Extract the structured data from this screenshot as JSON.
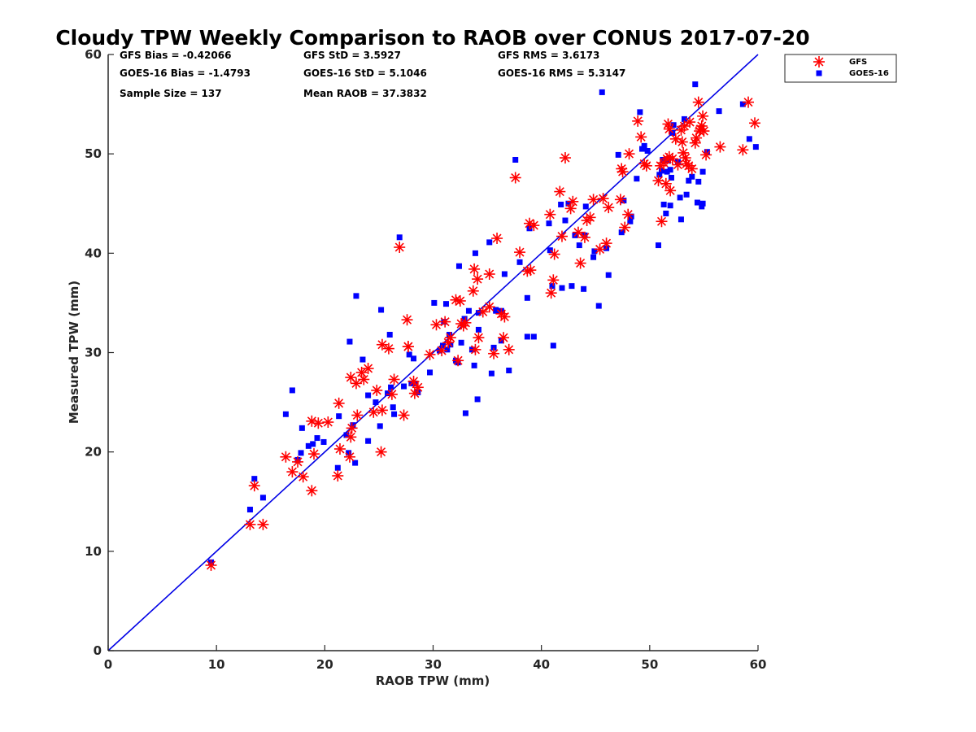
{
  "chart_data": {
    "type": "scatter",
    "title": "Cloudy TPW Weekly Comparison to RAOB over CONUS 2017-07-20",
    "xlabel": "RAOB TPW (mm)",
    "ylabel": "Measured TPW (mm)",
    "xlim": [
      0,
      60
    ],
    "ylim": [
      0,
      60
    ],
    "xticks": [
      "0",
      "10",
      "20",
      "30",
      "40",
      "50",
      "60"
    ],
    "yticks": [
      "0",
      "10",
      "20",
      "30",
      "40",
      "50",
      "60"
    ],
    "grid": false,
    "legend_position": "top-right, outside",
    "reference_line": {
      "name": "1:1",
      "x": [
        0,
        60
      ],
      "y": [
        0,
        60
      ],
      "color": "#0000e6"
    },
    "stats": {
      "gfs_bias": "GFS Bias = -0.42066",
      "gfs_std": "GFS StD = 3.5927",
      "gfs_rms": "GFS RMS = 3.6173",
      "goes_bias": "GOES-16 Bias = -1.4793",
      "goes_std": "GOES-16 StD = 5.1046",
      "goes_rms": "GOES-16 RMS = 5.3147",
      "sample_size": "Sample Size = 137",
      "mean_raob": "Mean RAOB = 37.3832"
    },
    "series": [
      {
        "name": "GFS",
        "marker": "asterisk",
        "color": "#ff0000",
        "points": [
          [
            9.5,
            8.6
          ],
          [
            13.1,
            12.7
          ],
          [
            14.3,
            12.7
          ],
          [
            13.5,
            16.6
          ],
          [
            16.4,
            19.5
          ],
          [
            17.0,
            18.0
          ],
          [
            17.5,
            19.0
          ],
          [
            18.0,
            17.5
          ],
          [
            18.8,
            23.1
          ],
          [
            19.4,
            22.9
          ],
          [
            19.0,
            19.8
          ],
          [
            18.8,
            16.1
          ],
          [
            21.2,
            17.6
          ],
          [
            21.4,
            20.3
          ],
          [
            21.3,
            24.9
          ],
          [
            22.3,
            19.5
          ],
          [
            22.4,
            21.5
          ],
          [
            22.5,
            22.4
          ],
          [
            22.4,
            27.5
          ],
          [
            22.9,
            26.9
          ],
          [
            23.0,
            23.7
          ],
          [
            23.6,
            27.3
          ],
          [
            24.0,
            28.4
          ],
          [
            24.5,
            24.0
          ],
          [
            24.8,
            26.2
          ],
          [
            25.2,
            20.0
          ],
          [
            25.3,
            24.2
          ],
          [
            25.3,
            30.8
          ],
          [
            25.9,
            30.4
          ],
          [
            26.2,
            25.8
          ],
          [
            26.4,
            27.3
          ],
          [
            27.3,
            23.7
          ],
          [
            27.6,
            33.3
          ],
          [
            27.7,
            30.6
          ],
          [
            28.2,
            27.1
          ],
          [
            28.3,
            25.9
          ],
          [
            28.6,
            26.5
          ],
          [
            29.7,
            29.8
          ],
          [
            30.3,
            32.8
          ],
          [
            30.8,
            30.2
          ],
          [
            31.4,
            31.0
          ],
          [
            31.1,
            33.1
          ],
          [
            32.1,
            35.3
          ],
          [
            32.5,
            35.2
          ],
          [
            32.6,
            32.9
          ],
          [
            32.3,
            29.2
          ],
          [
            32.8,
            32.7
          ],
          [
            33.7,
            36.2
          ],
          [
            33.8,
            38.4
          ],
          [
            33.9,
            30.3
          ],
          [
            34.1,
            37.4
          ],
          [
            34.2,
            31.5
          ],
          [
            34.6,
            34.1
          ],
          [
            35.2,
            37.9
          ],
          [
            35.2,
            34.6
          ],
          [
            35.6,
            29.9
          ],
          [
            35.9,
            41.5
          ],
          [
            36.3,
            33.9
          ],
          [
            36.5,
            31.5
          ],
          [
            36.6,
            33.6
          ],
          [
            37.0,
            30.3
          ],
          [
            37.6,
            47.6
          ],
          [
            38.0,
            40.1
          ],
          [
            38.7,
            38.2
          ],
          [
            38.9,
            43.0
          ],
          [
            39.3,
            42.8
          ],
          [
            40.9,
            36.0
          ],
          [
            40.8,
            43.9
          ],
          [
            41.1,
            37.3
          ],
          [
            41.2,
            39.9
          ],
          [
            41.7,
            46.2
          ],
          [
            41.9,
            41.7
          ],
          [
            42.2,
            49.6
          ],
          [
            42.7,
            44.5
          ],
          [
            42.9,
            45.2
          ],
          [
            43.4,
            42.1
          ],
          [
            43.6,
            39.0
          ],
          [
            44.0,
            41.6
          ],
          [
            44.2,
            43.3
          ],
          [
            44.5,
            43.6
          ],
          [
            44.8,
            45.4
          ],
          [
            45.4,
            40.4
          ],
          [
            45.7,
            45.5
          ],
          [
            46.0,
            41.0
          ],
          [
            46.2,
            44.6
          ],
          [
            47.3,
            45.4
          ],
          [
            47.4,
            48.5
          ],
          [
            47.5,
            48.2
          ],
          [
            47.7,
            42.6
          ],
          [
            48.0,
            43.9
          ],
          [
            48.1,
            50.0
          ],
          [
            48.9,
            53.3
          ],
          [
            49.2,
            51.7
          ],
          [
            49.5,
            49.0
          ],
          [
            49.7,
            48.8
          ],
          [
            50.8,
            47.3
          ],
          [
            51.0,
            48.8
          ],
          [
            51.1,
            43.2
          ],
          [
            51.3,
            49.1
          ],
          [
            51.5,
            47.0
          ],
          [
            51.6,
            49.5
          ],
          [
            51.8,
            49.7
          ],
          [
            51.8,
            52.5
          ],
          [
            51.7,
            53.0
          ],
          [
            51.9,
            46.3
          ],
          [
            52.1,
            49.5
          ],
          [
            52.4,
            51.5
          ],
          [
            52.6,
            48.9
          ],
          [
            52.9,
            52.4
          ],
          [
            53.0,
            51.2
          ],
          [
            53.1,
            50.1
          ],
          [
            53.2,
            52.8
          ],
          [
            53.3,
            49.6
          ],
          [
            53.4,
            49.0
          ],
          [
            53.6,
            48.8
          ],
          [
            53.7,
            53.2
          ],
          [
            53.9,
            48.5
          ],
          [
            54.2,
            51.1
          ],
          [
            54.3,
            51.6
          ],
          [
            54.5,
            55.2
          ],
          [
            54.6,
            52.3
          ],
          [
            54.7,
            52.5
          ],
          [
            54.8,
            52.8
          ],
          [
            54.9,
            53.8
          ],
          [
            55.0,
            52.3
          ],
          [
            55.2,
            49.9
          ],
          [
            56.5,
            50.7
          ],
          [
            58.6,
            50.4
          ],
          [
            59.1,
            55.2
          ],
          [
            59.7,
            53.1
          ],
          [
            26.9,
            40.6
          ],
          [
            33.0,
            33.0
          ],
          [
            20.3,
            23.0
          ],
          [
            23.4,
            28.0
          ],
          [
            27.7,
            30.6
          ],
          [
            31.6,
            31.5
          ],
          [
            39.0,
            38.3
          ]
        ]
      },
      {
        "name": "GOES-16",
        "marker": "square",
        "color": "#0000ff",
        "points": [
          [
            9.5,
            8.9
          ],
          [
            13.1,
            14.2
          ],
          [
            13.5,
            17.3
          ],
          [
            14.3,
            15.4
          ],
          [
            16.4,
            23.8
          ],
          [
            17.0,
            26.2
          ],
          [
            17.5,
            19.2
          ],
          [
            17.8,
            19.9
          ],
          [
            17.9,
            22.4
          ],
          [
            18.5,
            20.6
          ],
          [
            18.9,
            20.8
          ],
          [
            19.3,
            21.4
          ],
          [
            21.2,
            18.4
          ],
          [
            21.3,
            23.6
          ],
          [
            22.0,
            21.7
          ],
          [
            22.2,
            19.9
          ],
          [
            22.3,
            31.1
          ],
          [
            22.6,
            22.7
          ],
          [
            22.8,
            18.9
          ],
          [
            22.9,
            35.7
          ],
          [
            23.5,
            29.3
          ],
          [
            24.0,
            21.1
          ],
          [
            24.0,
            25.7
          ],
          [
            24.7,
            25.0
          ],
          [
            25.1,
            22.6
          ],
          [
            25.2,
            34.3
          ],
          [
            25.8,
            25.9
          ],
          [
            26.0,
            31.8
          ],
          [
            26.1,
            26.5
          ],
          [
            26.4,
            23.8
          ],
          [
            26.9,
            41.6
          ],
          [
            27.3,
            26.6
          ],
          [
            27.8,
            29.8
          ],
          [
            28.0,
            26.9
          ],
          [
            28.2,
            29.4
          ],
          [
            28.3,
            26.9
          ],
          [
            28.6,
            26.0
          ],
          [
            29.7,
            28.0
          ],
          [
            30.1,
            35.0
          ],
          [
            30.6,
            30.2
          ],
          [
            31.0,
            33.1
          ],
          [
            31.2,
            34.9
          ],
          [
            31.3,
            30.3
          ],
          [
            31.5,
            31.8
          ],
          [
            31.6,
            30.8
          ],
          [
            32.1,
            29.2
          ],
          [
            32.3,
            29.0
          ],
          [
            32.4,
            38.7
          ],
          [
            32.6,
            31.0
          ],
          [
            32.9,
            33.4
          ],
          [
            33.0,
            23.9
          ],
          [
            33.3,
            34.2
          ],
          [
            33.6,
            30.3
          ],
          [
            33.8,
            28.7
          ],
          [
            33.9,
            40.0
          ],
          [
            34.1,
            25.3
          ],
          [
            34.2,
            34.0
          ],
          [
            34.2,
            32.3
          ],
          [
            35.2,
            41.1
          ],
          [
            35.4,
            27.9
          ],
          [
            35.6,
            30.5
          ],
          [
            35.8,
            34.3
          ],
          [
            36.3,
            34.2
          ],
          [
            36.3,
            31.2
          ],
          [
            36.6,
            37.9
          ],
          [
            37.0,
            28.2
          ],
          [
            37.6,
            49.4
          ],
          [
            38.0,
            39.1
          ],
          [
            38.7,
            35.5
          ],
          [
            38.7,
            31.6
          ],
          [
            38.9,
            42.5
          ],
          [
            39.3,
            31.6
          ],
          [
            40.7,
            43.0
          ],
          [
            40.8,
            40.3
          ],
          [
            41.0,
            36.7
          ],
          [
            41.1,
            30.7
          ],
          [
            41.8,
            44.9
          ],
          [
            41.9,
            36.5
          ],
          [
            42.2,
            43.3
          ],
          [
            42.8,
            36.7
          ],
          [
            43.1,
            41.8
          ],
          [
            43.5,
            40.8
          ],
          [
            43.9,
            36.4
          ],
          [
            44.1,
            44.7
          ],
          [
            44.8,
            39.6
          ],
          [
            44.9,
            40.2
          ],
          [
            45.3,
            34.7
          ],
          [
            45.6,
            56.2
          ],
          [
            46.0,
            40.5
          ],
          [
            46.2,
            37.8
          ],
          [
            47.1,
            49.9
          ],
          [
            47.4,
            42.1
          ],
          [
            47.6,
            45.3
          ],
          [
            48.2,
            43.2
          ],
          [
            48.3,
            43.7
          ],
          [
            48.8,
            47.5
          ],
          [
            49.1,
            54.2
          ],
          [
            49.3,
            50.5
          ],
          [
            49.8,
            50.3
          ],
          [
            50.8,
            40.8
          ],
          [
            50.9,
            47.9
          ],
          [
            51.1,
            48.3
          ],
          [
            51.2,
            49.4
          ],
          [
            51.3,
            44.9
          ],
          [
            51.5,
            44.0
          ],
          [
            51.6,
            48.2
          ],
          [
            51.9,
            44.8
          ],
          [
            51.9,
            48.4
          ],
          [
            52.0,
            47.6
          ],
          [
            52.2,
            52.9
          ],
          [
            52.6,
            49.2
          ],
          [
            52.8,
            45.6
          ],
          [
            52.9,
            43.4
          ],
          [
            53.2,
            53.5
          ],
          [
            53.4,
            45.9
          ],
          [
            53.6,
            47.3
          ],
          [
            53.9,
            47.7
          ],
          [
            54.2,
            57.0
          ],
          [
            54.4,
            45.1
          ],
          [
            54.5,
            47.2
          ],
          [
            54.8,
            44.7
          ],
          [
            54.9,
            45.0
          ],
          [
            54.9,
            48.2
          ],
          [
            55.3,
            50.2
          ],
          [
            56.4,
            54.3
          ],
          [
            58.6,
            55.0
          ],
          [
            59.2,
            51.5
          ],
          [
            59.8,
            50.7
          ],
          [
            52.1,
            52.1
          ],
          [
            51.7,
            49.3
          ],
          [
            19.9,
            21.0
          ],
          [
            26.3,
            24.5
          ],
          [
            30.9,
            30.7
          ],
          [
            44.0,
            41.8
          ],
          [
            49.5,
            50.8
          ],
          [
            35.8,
            34.2
          ],
          [
            42.5,
            45.0
          ]
        ]
      }
    ]
  }
}
